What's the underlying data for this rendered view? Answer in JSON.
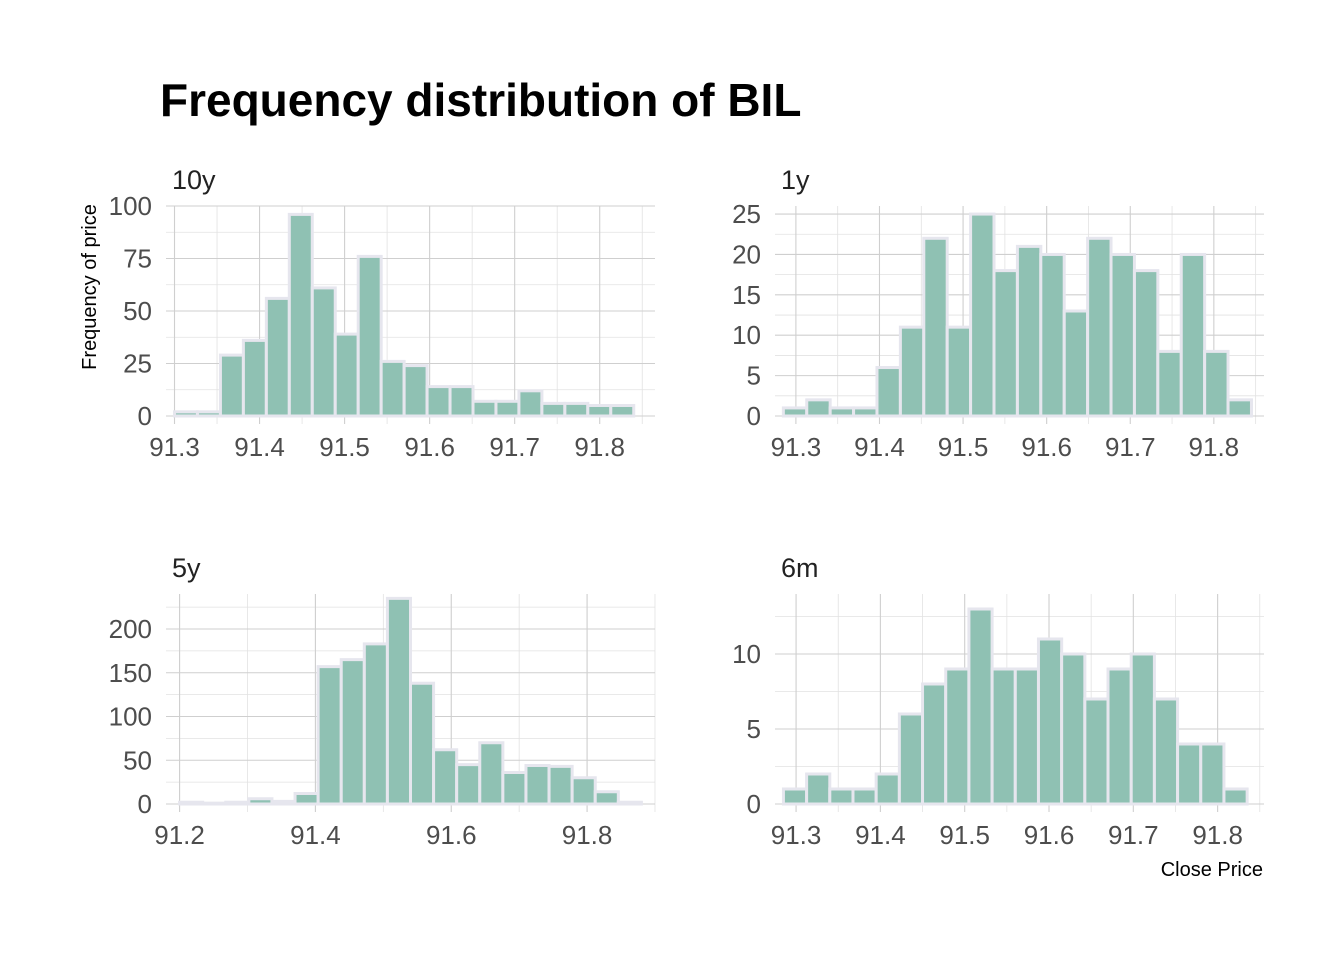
{
  "chart_data": {
    "type": "bar",
    "title": "Frequency distribution of BIL",
    "ylabel": "Frequency of price",
    "xlabel": "Close Price",
    "bar_color": "#8fc1b3",
    "bar_edge_color": "#e6e6ee",
    "grid": true,
    "panels": [
      {
        "name": "10y",
        "xlim": [
          91.29,
          91.865
        ],
        "ylim": [
          0,
          100
        ],
        "xticks": [
          91.3,
          91.4,
          91.5,
          91.6,
          91.7,
          91.8
        ],
        "xtick_labels": [
          "91.3",
          "91.4",
          "91.5",
          "91.6",
          "91.7",
          "91.8"
        ],
        "yticks": [
          0,
          25,
          50,
          75,
          100
        ],
        "ytick_labels": [
          "0",
          "25",
          "50",
          "75",
          "100"
        ],
        "bin_edges": [
          91.3,
          91.327,
          91.354,
          91.381,
          91.408,
          91.435,
          91.462,
          91.489,
          91.516,
          91.543,
          91.57,
          91.597,
          91.624,
          91.651,
          91.678,
          91.705,
          91.732,
          91.759,
          91.786,
          91.813,
          91.84
        ],
        "counts": [
          2,
          2,
          29,
          36,
          56,
          96,
          61,
          39,
          76,
          26,
          24,
          14,
          14,
          7,
          7,
          12,
          6,
          6,
          5,
          5
        ]
      },
      {
        "name": "1y",
        "xlim": [
          91.275,
          91.86
        ],
        "ylim": [
          0,
          26
        ],
        "xticks": [
          91.3,
          91.4,
          91.5,
          91.6,
          91.7,
          91.8
        ],
        "xtick_labels": [
          "91.3",
          "91.4",
          "91.5",
          "91.6",
          "91.7",
          "91.8"
        ],
        "yticks": [
          0,
          5,
          10,
          15,
          20,
          25
        ],
        "ytick_labels": [
          "0",
          "5",
          "10",
          "15",
          "20",
          "25"
        ],
        "bin_edges": [
          91.285,
          91.313,
          91.341,
          91.369,
          91.397,
          91.425,
          91.453,
          91.481,
          91.509,
          91.537,
          91.565,
          91.593,
          91.621,
          91.649,
          91.677,
          91.705,
          91.733,
          91.761,
          91.789,
          91.817,
          91.845
        ],
        "counts": [
          1,
          2,
          1,
          1,
          6,
          11,
          22,
          11,
          25,
          18,
          21,
          20,
          13,
          22,
          20,
          18,
          8,
          20,
          8,
          2
        ]
      },
      {
        "name": "5y",
        "xlim": [
          91.18,
          91.9
        ],
        "ylim": [
          0,
          240
        ],
        "xticks": [
          91.2,
          91.4,
          91.6,
          91.8
        ],
        "xtick_labels": [
          "91.2",
          "91.4",
          "91.6",
          "91.8"
        ],
        "yticks": [
          0,
          50,
          100,
          150,
          200
        ],
        "ytick_labels": [
          "0",
          "50",
          "100",
          "150",
          "200"
        ],
        "bin_edges": [
          91.2,
          91.234,
          91.268,
          91.302,
          91.336,
          91.37,
          91.404,
          91.438,
          91.472,
          91.506,
          91.54,
          91.574,
          91.608,
          91.642,
          91.676,
          91.71,
          91.744,
          91.778,
          91.812,
          91.846,
          91.88
        ],
        "counts": [
          2,
          1,
          2,
          6,
          3,
          12,
          157,
          165,
          183,
          235,
          138,
          62,
          45,
          70,
          36,
          44,
          43,
          30,
          14,
          2
        ]
      },
      {
        "name": "6m",
        "xlim": [
          91.275,
          91.855
        ],
        "ylim": [
          0,
          14
        ],
        "xticks": [
          91.3,
          91.4,
          91.5,
          91.6,
          91.7,
          91.8
        ],
        "xtick_labels": [
          "91.3",
          "91.4",
          "91.5",
          "91.6",
          "91.7",
          "91.8"
        ],
        "yticks": [
          0,
          5,
          10
        ],
        "ytick_labels": [
          "0",
          "5",
          "10"
        ],
        "bin_edges": [
          91.285,
          91.3125,
          91.34,
          91.3675,
          91.395,
          91.4225,
          91.45,
          91.4775,
          91.505,
          91.5325,
          91.56,
          91.5875,
          91.615,
          91.6425,
          91.67,
          91.6975,
          91.725,
          91.7525,
          91.78,
          91.8075,
          91.835
        ],
        "counts": [
          1,
          2,
          1,
          1,
          2,
          6,
          8,
          9,
          13,
          9,
          9,
          11,
          10,
          7,
          9,
          10,
          7,
          4,
          4,
          1
        ]
      }
    ]
  }
}
